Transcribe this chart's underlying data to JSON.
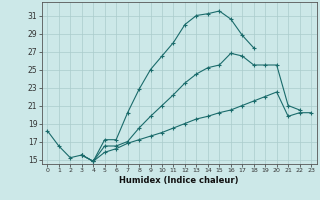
{
  "xlabel": "Humidex (Indice chaleur)",
  "background_color": "#cce8e8",
  "grid_color": "#aacccc",
  "line_color": "#1a6b6b",
  "xlim": [
    -0.5,
    23.5
  ],
  "ylim": [
    14.5,
    32.5
  ],
  "xticks": [
    0,
    1,
    2,
    3,
    4,
    5,
    6,
    7,
    8,
    9,
    10,
    11,
    12,
    13,
    14,
    15,
    16,
    17,
    18,
    19,
    20,
    21,
    22,
    23
  ],
  "yticks": [
    15,
    17,
    19,
    21,
    23,
    25,
    27,
    29,
    31
  ],
  "curve1_x": [
    0,
    1,
    2,
    3,
    4,
    5,
    6,
    7,
    8,
    9,
    10,
    11,
    12,
    13,
    14,
    15,
    16,
    17,
    18
  ],
  "curve1_y": [
    18.2,
    16.5,
    15.2,
    15.5,
    14.8,
    17.2,
    17.2,
    20.2,
    22.8,
    25.0,
    26.5,
    28.0,
    30.0,
    31.0,
    31.2,
    31.5,
    30.6,
    28.8,
    27.4
  ],
  "curve2_x": [
    3,
    4,
    5,
    6,
    7,
    8,
    9,
    10,
    11,
    12,
    13,
    14,
    15,
    16,
    17,
    18,
    19,
    20,
    21,
    22
  ],
  "curve2_y": [
    15.5,
    14.8,
    16.5,
    16.5,
    17.0,
    18.5,
    19.8,
    21.0,
    22.2,
    23.5,
    24.5,
    25.2,
    25.5,
    26.8,
    26.5,
    25.5,
    25.5,
    25.5,
    21.0,
    20.5
  ],
  "curve3_x": [
    3,
    4,
    5,
    6,
    7,
    8,
    9,
    10,
    11,
    12,
    13,
    14,
    15,
    16,
    17,
    18,
    19,
    20,
    21,
    22,
    23
  ],
  "curve3_y": [
    15.5,
    14.8,
    15.8,
    16.2,
    16.8,
    17.2,
    17.6,
    18.0,
    18.5,
    19.0,
    19.5,
    19.8,
    20.2,
    20.5,
    21.0,
    21.5,
    22.0,
    22.5,
    19.8,
    20.2,
    20.2
  ]
}
